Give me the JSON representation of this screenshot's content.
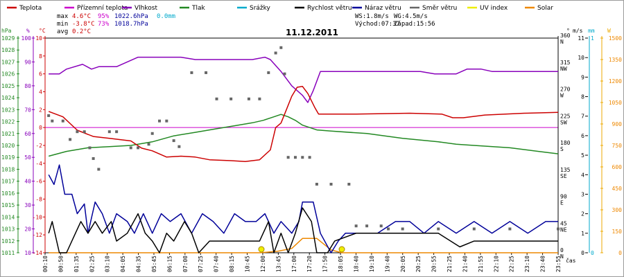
{
  "chart_data": {
    "type": "line",
    "title": "11.12.2011",
    "legend": [
      {
        "label": "Teplota",
        "color": "#cc0000"
      },
      {
        "label": "Přízemní teplota",
        "color": "#cc00cc"
      },
      {
        "label": "Vlhkost",
        "color": "#8800bb"
      },
      {
        "label": "Tlak",
        "color": "#228822"
      },
      {
        "label": "Srážky",
        "color": "#00aacc"
      },
      {
        "label": "Rychlost větru",
        "color": "#000000"
      },
      {
        "label": "Náraz větru",
        "color": "#000099"
      },
      {
        "label": "Směr větru",
        "color": "#666666"
      },
      {
        "label": "UV index",
        "color": "#eeee00"
      },
      {
        "label": "Solar",
        "color": "#ee8800"
      }
    ],
    "stats": {
      "max_label": "max",
      "min_label": "min",
      "avg_label": "avg",
      "max_temp": "4.6°C",
      "max_hum": "95%",
      "max_press": "1022.6hPa",
      "max_rain": "0.0mm",
      "min_temp": "-3.8°C",
      "min_hum": "73%",
      "min_press": "1018.7hPa",
      "avg_temp": "0.2°C"
    },
    "wind_info": {
      "ws": "WS:1.8m/s",
      "wg": "WG:4.5m/s",
      "sunrise": "Východ:07:37",
      "sunset": "Západ:15:56"
    },
    "axes": {
      "hpa_unit": "hPa",
      "hum_unit": "%",
      "temp_unit": "°C",
      "dir_unit": "°",
      "ms_unit": "m/s",
      "mm_unit": "mm",
      "w_unit": "W",
      "x_unit": "čas",
      "hpa_ticks": [
        "1011",
        "1012",
        "1013",
        "1014",
        "1015",
        "1016",
        "1017",
        "1018",
        "1019",
        "1020",
        "1021",
        "1022",
        "1023",
        "1024",
        "1025",
        "1026",
        "1027",
        "1028",
        "1029"
      ],
      "hum_ticks": [
        "10",
        "20",
        "30",
        "40",
        "50",
        "60",
        "70",
        "80",
        "90",
        "100"
      ],
      "temp_ticks": [
        "-14",
        "-12",
        "-10",
        "-8",
        "-6",
        "-4",
        "-2",
        "0",
        "2",
        "4",
        "6",
        "8",
        "10"
      ],
      "dir_ticks": [
        {
          "deg": "0",
          "dir": "N"
        },
        {
          "deg": "45",
          "dir": "NE"
        },
        {
          "deg": "90",
          "dir": "E"
        },
        {
          "deg": "135",
          "dir": "SE"
        },
        {
          "deg": "180",
          "dir": "S"
        },
        {
          "deg": "225",
          "dir": "SW"
        },
        {
          "deg": "270",
          "dir": "W"
        },
        {
          "deg": "315",
          "dir": "NW"
        },
        {
          "deg": "360",
          "dir": "N"
        }
      ],
      "ms_ticks": [
        "0",
        "1",
        "2",
        "3",
        "4",
        "5",
        "6",
        "7",
        "8",
        "9",
        "10",
        "11"
      ],
      "mm_ticks": [
        "0",
        "1"
      ],
      "w_ticks": [
        "0",
        "150",
        "300",
        "450",
        "600",
        "750",
        "900",
        "1050",
        "1200",
        "1350",
        "1500"
      ],
      "hum_range": [
        10,
        100
      ],
      "temp_range": [
        -14,
        10
      ],
      "ms_range": [
        0,
        11
      ],
      "dir_range": [
        0,
        360
      ],
      "w_range": [
        0,
        1500
      ],
      "time_range": [
        0,
        1435
      ],
      "x_ticks": [
        "00:10",
        "00:50",
        "01:35",
        "02:25",
        "03:10",
        "04:05",
        "04:35",
        "05:45",
        "06:15",
        "07:00",
        "07:25",
        "07:40",
        "08:15",
        "10:45",
        "12:00",
        "13:45",
        "17:00",
        "17:20",
        "17:50",
        "18:05",
        "18:40",
        "19:10",
        "19:40",
        "20:05",
        "20:25",
        "20:55",
        "21:25",
        "21:40",
        "21:55",
        "22:10",
        "22:25",
        "23:10",
        "23:40",
        "23:55"
      ]
    },
    "series": {
      "temperature": [
        [
          10,
          1.8
        ],
        [
          50,
          1.2
        ],
        [
          90,
          -0.3
        ],
        [
          135,
          -1.0
        ],
        [
          180,
          -1.2
        ],
        [
          240,
          -1.5
        ],
        [
          270,
          -2.3
        ],
        [
          300,
          -2.6
        ],
        [
          340,
          -3.3
        ],
        [
          380,
          -3.2
        ],
        [
          420,
          -3.3
        ],
        [
          460,
          -3.6
        ],
        [
          520,
          -3.7
        ],
        [
          560,
          -3.8
        ],
        [
          600,
          -3.6
        ],
        [
          630,
          -2.5
        ],
        [
          645,
          0.0
        ],
        [
          660,
          0.5
        ],
        [
          675,
          2.0
        ],
        [
          690,
          3.5
        ],
        [
          705,
          4.5
        ],
        [
          720,
          4.6
        ],
        [
          735,
          3.8
        ],
        [
          755,
          2.2
        ],
        [
          765,
          1.5
        ],
        [
          800,
          1.5
        ],
        [
          870,
          1.5
        ],
        [
          1020,
          1.6
        ],
        [
          1110,
          1.5
        ],
        [
          1140,
          1.1
        ],
        [
          1170,
          1.1
        ],
        [
          1230,
          1.4
        ],
        [
          1340,
          1.6
        ],
        [
          1435,
          1.7
        ]
      ],
      "humidity": [
        [
          10,
          85
        ],
        [
          40,
          85
        ],
        [
          60,
          87
        ],
        [
          105,
          89
        ],
        [
          130,
          87
        ],
        [
          150,
          88
        ],
        [
          200,
          88
        ],
        [
          260,
          92
        ],
        [
          380,
          92
        ],
        [
          420,
          91
        ],
        [
          500,
          91
        ],
        [
          580,
          91
        ],
        [
          615,
          92
        ],
        [
          630,
          91
        ],
        [
          660,
          86
        ],
        [
          690,
          80
        ],
        [
          720,
          76
        ],
        [
          735,
          73
        ],
        [
          750,
          78
        ],
        [
          770,
          86
        ],
        [
          800,
          86
        ],
        [
          940,
          86
        ],
        [
          1050,
          86
        ],
        [
          1090,
          85
        ],
        [
          1150,
          85
        ],
        [
          1180,
          87
        ],
        [
          1220,
          87
        ],
        [
          1250,
          86
        ],
        [
          1435,
          86
        ]
      ],
      "pressure": [
        [
          10,
          1019.1
        ],
        [
          60,
          1019.5
        ],
        [
          120,
          1019.8
        ],
        [
          180,
          1019.9
        ],
        [
          240,
          1020.0
        ],
        [
          300,
          1020.3
        ],
        [
          360,
          1020.8
        ],
        [
          420,
          1021.1
        ],
        [
          480,
          1021.4
        ],
        [
          540,
          1021.7
        ],
        [
          580,
          1021.9
        ],
        [
          610,
          1022.1
        ],
        [
          640,
          1022.4
        ],
        [
          660,
          1022.6
        ],
        [
          680,
          1022.4
        ],
        [
          700,
          1022.1
        ],
        [
          720,
          1021.7
        ],
        [
          760,
          1021.3
        ],
        [
          800,
          1021.2
        ],
        [
          900,
          1021.0
        ],
        [
          1000,
          1020.6
        ],
        [
          1100,
          1020.3
        ],
        [
          1150,
          1020.1
        ],
        [
          1200,
          1020.0
        ],
        [
          1300,
          1019.8
        ],
        [
          1380,
          1019.5
        ],
        [
          1435,
          1019.3
        ]
      ],
      "wind_speed": [
        [
          10,
          1.0
        ],
        [
          20,
          1.6
        ],
        [
          40,
          0.0
        ],
        [
          60,
          0.0
        ],
        [
          85,
          1.0
        ],
        [
          100,
          1.6
        ],
        [
          120,
          1.0
        ],
        [
          140,
          1.6
        ],
        [
          160,
          1.0
        ],
        [
          185,
          1.6
        ],
        [
          200,
          0.6
        ],
        [
          230,
          1.0
        ],
        [
          260,
          2.0
        ],
        [
          280,
          1.0
        ],
        [
          300,
          0.6
        ],
        [
          320,
          0.0
        ],
        [
          340,
          1.0
        ],
        [
          360,
          0.6
        ],
        [
          390,
          1.6
        ],
        [
          410,
          1.0
        ],
        [
          430,
          0.0
        ],
        [
          460,
          0.6
        ],
        [
          500,
          0.6
        ],
        [
          560,
          0.6
        ],
        [
          600,
          0.6
        ],
        [
          625,
          1.6
        ],
        [
          640,
          0.0
        ],
        [
          660,
          1.0
        ],
        [
          680,
          0.0
        ],
        [
          700,
          1.0
        ],
        [
          720,
          2.3
        ],
        [
          745,
          1.6
        ],
        [
          760,
          0.0
        ],
        [
          790,
          0.0
        ],
        [
          810,
          0.6
        ],
        [
          870,
          1.0
        ],
        [
          1000,
          1.0
        ],
        [
          1100,
          1.0
        ],
        [
          1160,
          0.3
        ],
        [
          1200,
          0.6
        ],
        [
          1300,
          0.6
        ],
        [
          1380,
          0.6
        ],
        [
          1435,
          0.6
        ]
      ],
      "wind_gust": [
        [
          10,
          4.0
        ],
        [
          25,
          3.5
        ],
        [
          40,
          4.5
        ],
        [
          55,
          3.0
        ],
        [
          75,
          3.0
        ],
        [
          90,
          2.0
        ],
        [
          110,
          2.5
        ],
        [
          120,
          1.0
        ],
        [
          140,
          2.6
        ],
        [
          160,
          2.0
        ],
        [
          180,
          1.0
        ],
        [
          200,
          2.0
        ],
        [
          230,
          1.6
        ],
        [
          250,
          1.0
        ],
        [
          275,
          2.0
        ],
        [
          300,
          1.0
        ],
        [
          325,
          2.0
        ],
        [
          350,
          1.6
        ],
        [
          380,
          2.0
        ],
        [
          410,
          1.0
        ],
        [
          440,
          2.0
        ],
        [
          470,
          1.6
        ],
        [
          500,
          1.0
        ],
        [
          530,
          2.0
        ],
        [
          560,
          1.6
        ],
        [
          590,
          1.6
        ],
        [
          615,
          2.0
        ],
        [
          640,
          1.0
        ],
        [
          660,
          1.6
        ],
        [
          690,
          1.0
        ],
        [
          710,
          1.6
        ],
        [
          720,
          2.6
        ],
        [
          750,
          2.6
        ],
        [
          770,
          1.0
        ],
        [
          800,
          0.0
        ],
        [
          820,
          0.6
        ],
        [
          840,
          1.0
        ],
        [
          880,
          1.0
        ],
        [
          930,
          1.0
        ],
        [
          980,
          1.6
        ],
        [
          1020,
          1.6
        ],
        [
          1060,
          1.0
        ],
        [
          1100,
          1.6
        ],
        [
          1150,
          1.0
        ],
        [
          1200,
          1.6
        ],
        [
          1250,
          1.0
        ],
        [
          1300,
          1.6
        ],
        [
          1350,
          1.0
        ],
        [
          1400,
          1.6
        ],
        [
          1435,
          1.6
        ]
      ],
      "wind_direction": [
        [
          10,
          230
        ],
        [
          20,
          221
        ],
        [
          50,
          221
        ],
        [
          70,
          190
        ],
        [
          90,
          203
        ],
        [
          110,
          203
        ],
        [
          125,
          176
        ],
        [
          135,
          158
        ],
        [
          150,
          140
        ],
        [
          180,
          203
        ],
        [
          200,
          203
        ],
        [
          240,
          176
        ],
        [
          260,
          176
        ],
        [
          290,
          182
        ],
        [
          300,
          200
        ],
        [
          320,
          221
        ],
        [
          340,
          221
        ],
        [
          360,
          188
        ],
        [
          375,
          178
        ],
        [
          410,
          302
        ],
        [
          450,
          302
        ],
        [
          480,
          258
        ],
        [
          520,
          258
        ],
        [
          570,
          258
        ],
        [
          600,
          258
        ],
        [
          625,
          302
        ],
        [
          645,
          335
        ],
        [
          660,
          344
        ],
        [
          670,
          300
        ],
        [
          680,
          160
        ],
        [
          700,
          160
        ],
        [
          720,
          160
        ],
        [
          740,
          160
        ],
        [
          760,
          115
        ],
        [
          800,
          115
        ],
        [
          850,
          115
        ],
        [
          870,
          45
        ],
        [
          900,
          45
        ],
        [
          940,
          45
        ],
        [
          960,
          40
        ],
        [
          1000,
          40
        ],
        [
          1100,
          40
        ],
        [
          1200,
          40
        ],
        [
          1300,
          40
        ],
        [
          1435,
          40
        ]
      ],
      "solar": [
        [
          10,
          0
        ],
        [
          600,
          0
        ],
        [
          650,
          10
        ],
        [
          690,
          30
        ],
        [
          720,
          100
        ],
        [
          760,
          100
        ],
        [
          800,
          20
        ],
        [
          830,
          0
        ],
        [
          1435,
          0
        ]
      ],
      "uv_markers": [
        [
          605,
          0
        ],
        [
          830,
          0
        ]
      ]
    }
  }
}
